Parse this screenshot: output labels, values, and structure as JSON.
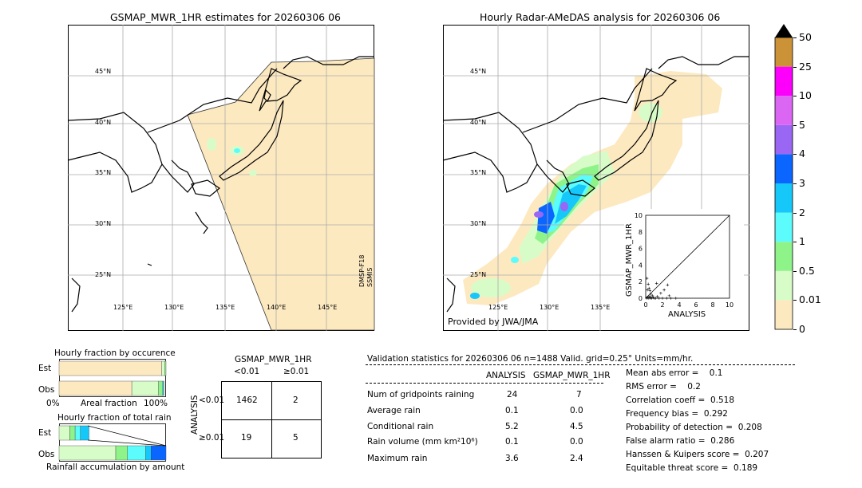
{
  "left_map": {
    "title": "GSMAP_MWR_1HR estimates for 20260306 06",
    "lat_labels": [
      "45°N",
      "40°N",
      "35°N",
      "30°N",
      "25°N"
    ],
    "lon_labels": [
      "125°E",
      "130°E",
      "135°E",
      "140°E",
      "145°E"
    ],
    "satellite_label_1": "DMSP-F18",
    "satellite_label_2": "SSMIS"
  },
  "right_map": {
    "title": "Hourly Radar-AMeDAS analysis for 20260306 06",
    "lat_labels": [
      "45°N",
      "40°N",
      "35°N",
      "30°N",
      "25°N"
    ],
    "lon_labels": [
      "125°E",
      "130°E",
      "135°E"
    ],
    "provided_by": "Provided by JWA/JMA"
  },
  "colorbar": {
    "tick_labels": [
      "0",
      "0.01",
      "0.5",
      "1",
      "2",
      "3",
      "4",
      "5",
      "10",
      "25",
      "50"
    ],
    "colors": [
      "#fde9c0",
      "#d8fcc8",
      "#8ef48a",
      "#5cfcfc",
      "#16c8fa",
      "#0a66ff",
      "#9a66f4",
      "#dc66f4",
      "#fc00fc",
      "#cc9238",
      "#000000"
    ]
  },
  "inset_scatter": {
    "ylabel": "GSMAP_MWR_1HR",
    "xlabel": "ANALYSIS",
    "ticks": [
      "0",
      "2",
      "4",
      "6",
      "8",
      "10"
    ]
  },
  "occurrence_chart": {
    "title": "Hourly fraction by occurence",
    "row_labels": [
      "Est",
      "Obs"
    ],
    "axis_left": "0%",
    "axis_mid": "Areal fraction",
    "axis_right": "100%"
  },
  "rain_chart": {
    "title": "Hourly fraction of total rain",
    "row_labels": [
      "Est",
      "Obs"
    ],
    "axis_label": "Rainfall accumulation by amount"
  },
  "contingency": {
    "title": "GSMAP_MWR_1HR",
    "col_labels": [
      "<0.01",
      "≥0.01"
    ],
    "row_axis_label": "ANALYSIS",
    "row_labels": [
      "<0.01",
      "≥0.01"
    ],
    "cells": [
      [
        "1462",
        "2"
      ],
      [
        "19",
        "5"
      ]
    ]
  },
  "validation": {
    "header": "Validation statistics for 20260306 06  n=1488 Valid. grid=0.25° Units=mm/hr.",
    "col_analysis": "ANALYSIS",
    "col_gsmap": "GSMAP_MWR_1HR",
    "rows": [
      {
        "label": "Num of gridpoints raining",
        "analysis": "24",
        "gsmap": "7"
      },
      {
        "label": "Average rain",
        "analysis": "0.1",
        "gsmap": "0.0"
      },
      {
        "label": "Conditional rain",
        "analysis": "5.2",
        "gsmap": "4.5"
      },
      {
        "label": "Rain volume (mm km²10⁶)",
        "analysis": "0.1",
        "gsmap": "0.0"
      },
      {
        "label": "Maximum rain",
        "analysis": "3.6",
        "gsmap": "2.4"
      }
    ],
    "scores": [
      "Mean abs error =    0.1",
      "RMS error =    0.2",
      "Correlation coeff =  0.518",
      "Frequency bias =  0.292",
      "Probability of detection =  0.208",
      "False alarm ratio =  0.286",
      "Hanssen & Kuipers score =  0.207",
      "Equitable threat score =  0.189"
    ]
  },
  "chart_data": [
    {
      "type": "bar",
      "title": "Hourly fraction by occurence",
      "categories": [
        "Est",
        "Obs"
      ],
      "series": [
        {
          "values": [
            0.96,
            0.68
          ],
          "color": "#fde9c0"
        },
        {
          "values": [
            0.03,
            0.25
          ],
          "color": "#d8fcc8"
        },
        {
          "values": [
            0.01,
            0.04
          ],
          "color": "#8ef48a"
        },
        {
          "values": [
            0.0,
            0.01
          ],
          "color": "#16c8fa"
        }
      ],
      "xlim": [
        0,
        1
      ]
    },
    {
      "type": "bar",
      "title": "Hourly fraction of total rain",
      "categories": [
        "Est",
        "Obs"
      ],
      "series": [
        {
          "values": [
            0.1,
            0.53
          ],
          "color": "#d8fcc8"
        },
        {
          "values": [
            0.05,
            0.11
          ],
          "color": "#8ef48a"
        },
        {
          "values": [
            0.05,
            0.17
          ],
          "color": "#5cfcfc"
        },
        {
          "values": [
            0.08,
            0.05
          ],
          "color": "#16c8fa"
        },
        {
          "values": [
            0.0,
            0.14
          ],
          "color": "#0a66ff"
        }
      ],
      "xlim": [
        0,
        1
      ]
    },
    {
      "type": "scatter",
      "title": "",
      "xlabel": "ANALYSIS",
      "ylabel": "GSMAP_MWR_1HR",
      "xlim": [
        0,
        10
      ],
      "ylim": [
        0,
        10
      ],
      "points": [
        [
          0.1,
          0.0
        ],
        [
          0.2,
          0.1
        ],
        [
          0.3,
          0.0
        ],
        [
          0.4,
          0.2
        ],
        [
          0.5,
          0.0
        ],
        [
          0.6,
          0.1
        ],
        [
          0.7,
          0.0
        ],
        [
          0.8,
          0.3
        ],
        [
          1.0,
          0.0
        ],
        [
          1.2,
          0.0
        ],
        [
          1.4,
          0.2
        ],
        [
          1.6,
          0.0
        ],
        [
          1.8,
          0.6
        ],
        [
          2.0,
          0.0
        ],
        [
          2.2,
          1.0
        ],
        [
          2.5,
          0.0
        ],
        [
          2.8,
          0.3
        ],
        [
          3.0,
          0.0
        ],
        [
          3.6,
          0.0
        ],
        [
          0.3,
          1.7
        ],
        [
          0.4,
          1.2
        ],
        [
          0.2,
          1.0
        ],
        [
          1.3,
          1.8
        ],
        [
          2.6,
          1.6
        ],
        [
          0.6,
          0.5
        ],
        [
          0.9,
          0.1
        ],
        [
          0.15,
          2.4
        ],
        [
          0.5,
          0.9
        ]
      ]
    }
  ]
}
